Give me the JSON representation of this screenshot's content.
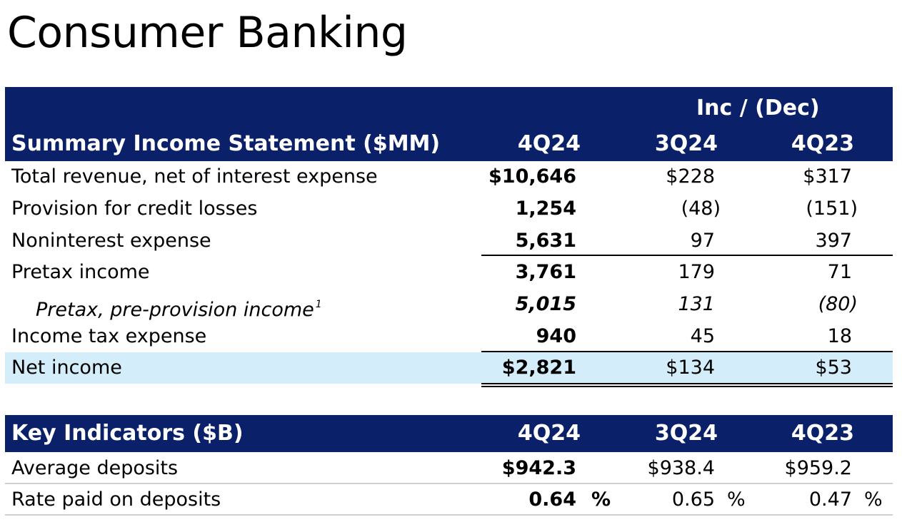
{
  "title": "Consumer Banking",
  "income": {
    "group_header": "Inc / (Dec)",
    "section_title": "Summary Income Statement ($MM)",
    "col_headers": [
      "4Q24",
      "3Q24",
      "4Q23"
    ],
    "rows": [
      {
        "label": "Total revenue, net of interest expense",
        "v1": "$10,646",
        "v2": "$228",
        "v3": "$317"
      },
      {
        "label": "Provision for credit losses",
        "v1": "1,254",
        "v2": "(48)",
        "v3": "(151)"
      },
      {
        "label": "Noninterest expense",
        "v1": "5,631",
        "v2": "97",
        "v3": "397"
      },
      {
        "label": "Pretax income",
        "v1": "3,761",
        "v2": "179",
        "v3": "71"
      },
      {
        "label": "Pretax, pre-provision income",
        "footnote": "1",
        "v1": "5,015",
        "v2": "131",
        "v3": "(80)"
      },
      {
        "label": "Income tax expense",
        "v1": "940",
        "v2": "45",
        "v3": "18"
      },
      {
        "label": "Net income",
        "v1": "$2,821",
        "v2": "$134",
        "v3": "$53"
      }
    ]
  },
  "indicators": {
    "section_title": "Key Indicators ($B)",
    "col_headers": [
      "4Q24",
      "3Q24",
      "4Q23"
    ],
    "rows": [
      {
        "label": "Average deposits",
        "v1": "$942.3",
        "v2": "$938.4",
        "v3": "$959.2"
      },
      {
        "label": "Rate paid on deposits",
        "v1": "0.64",
        "v2": "0.65",
        "v3": "0.47",
        "unit": "%"
      }
    ]
  },
  "colors": {
    "header_bg": "#0a2068",
    "highlight_bg": "#d3eefa"
  }
}
